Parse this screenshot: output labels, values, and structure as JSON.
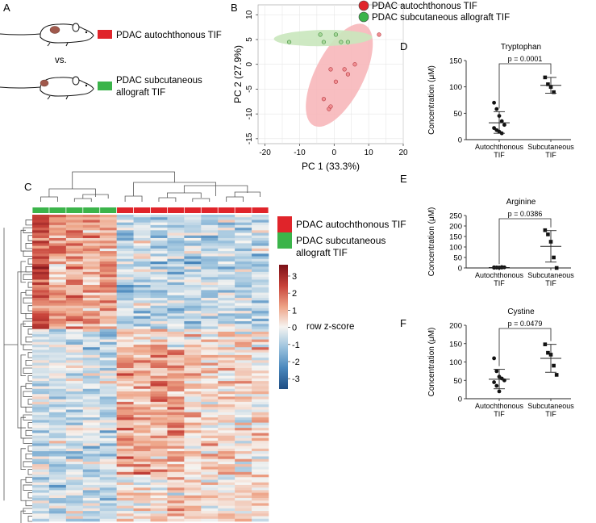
{
  "colors": {
    "autochthonous": "#e0242a",
    "subcutaneous": "#3bb44a",
    "pca_red_fill": "#f7b3b6",
    "pca_green_fill": "#c9e7bd",
    "heat_low": "#1f4e84",
    "heat_mid": "#f6f4f1",
    "heat_high": "#7b1017"
  },
  "panel_a": {
    "letter": "A",
    "group1_label": "PDAC autochthonous TIF",
    "vs_label": "vs.",
    "group2_label_line1": "PDAC subcutaneous",
    "group2_label_line2": "allograft TIF"
  },
  "panel_b": {
    "letter": "B",
    "legend": [
      "PDAC autochthonous TIF",
      "PDAC subcutaneous allograft TIF"
    ]
  },
  "panel_c": {
    "letter": "C",
    "legend": [
      "PDAC autochthonous TIF",
      "PDAC subcutaneous",
      "allograft TIF"
    ],
    "colorbar_label": "row z-score",
    "colorbar_ticks": [
      "3",
      "2",
      "1",
      "0",
      "-1",
      "-2",
      "-3"
    ]
  },
  "chart_data": [
    {
      "id": "pca",
      "type": "scatter",
      "panel": "B",
      "xlabel": "PC 1 (33.3%)",
      "ylabel": "PC 2 (27.9%)",
      "xlim": [
        -22,
        20
      ],
      "ylim": [
        -16,
        12
      ],
      "xticks": [
        -20,
        -10,
        0,
        10,
        20
      ],
      "yticks": [
        10,
        5,
        0,
        -5,
        -10,
        -15
      ],
      "grid": true,
      "series": [
        {
          "name": "PDAC autochthonous TIF",
          "x": [
            13,
            6,
            3,
            4,
            -1,
            0.5,
            -1.5,
            -1,
            -3
          ],
          "y": [
            6,
            0,
            -1,
            -2,
            -1,
            -3.5,
            -9,
            -8.5,
            -7
          ]
        },
        {
          "name": "PDAC subcutaneous allograft TIF",
          "x": [
            -13,
            -4,
            -3,
            0.5,
            2,
            4
          ],
          "y": [
            4.5,
            6,
            4.5,
            6,
            4.5,
            4.5
          ]
        }
      ]
    },
    {
      "id": "tryptophan",
      "type": "scatter",
      "panel": "D",
      "letter": "D",
      "title": "Tryptophan",
      "ylabel": "Concentration (μM)",
      "ylim": [
        0,
        150
      ],
      "yticks": [
        0,
        50,
        100,
        150
      ],
      "categories": [
        "Autochthonous",
        "Subcutaneous"
      ],
      "category_sub": [
        "TIF",
        "TIF"
      ],
      "pvalue": "p = 0.0001",
      "groups": [
        {
          "name": "Autochthonous TIF",
          "values": [
            70,
            58,
            45,
            35,
            28,
            22,
            18,
            15,
            12
          ],
          "mean": 32,
          "sd_low": 12,
          "sd_high": 53
        },
        {
          "name": "Subcutaneous TIF",
          "values": [
            118,
            105,
            100,
            90
          ],
          "mean": 103,
          "sd_low": 88,
          "sd_high": 118
        }
      ]
    },
    {
      "id": "arginine",
      "type": "scatter",
      "panel": "E",
      "letter": "E",
      "title": "Arginine",
      "ylabel": "Concentration (μM)",
      "ylim": [
        0,
        250
      ],
      "yticks": [
        0,
        50,
        100,
        150,
        200,
        250
      ],
      "categories": [
        "Autochthonous",
        "Subcutaneous"
      ],
      "category_sub": [
        "TIF",
        "TIF"
      ],
      "pvalue": "p = 0.0386",
      "groups": [
        {
          "name": "Autochthonous TIF",
          "values": [
            3,
            2,
            1,
            2,
            3,
            1,
            2,
            2,
            4
          ],
          "mean": 2,
          "sd_low": 1,
          "sd_high": 3
        },
        {
          "name": "Subcutaneous TIF",
          "values": [
            180,
            160,
            125,
            50,
            0
          ],
          "mean": 103,
          "sd_low": 28,
          "sd_high": 178
        }
      ]
    },
    {
      "id": "cystine",
      "type": "scatter",
      "panel": "F",
      "letter": "F",
      "title": "Cystine",
      "ylabel": "Concentration (μM)",
      "ylim": [
        0,
        200
      ],
      "yticks": [
        0,
        50,
        100,
        150,
        200
      ],
      "categories": [
        "Autochthonous",
        "Subcutaneous"
      ],
      "category_sub": [
        "TIF",
        "TIF"
      ],
      "pvalue": "p = 0.0479",
      "groups": [
        {
          "name": "Autochthonous TIF",
          "values": [
            110,
            75,
            60,
            55,
            50,
            45,
            35,
            20
          ],
          "mean": 53,
          "sd_low": 27,
          "sd_high": 80
        },
        {
          "name": "Subcutaneous TIF",
          "values": [
            148,
            125,
            120,
            90,
            65
          ],
          "mean": 110,
          "sd_low": 72,
          "sd_high": 148
        }
      ]
    },
    {
      "id": "heatmap",
      "type": "heatmap",
      "panel": "C",
      "column_groups": [
        "subcutaneous",
        "subcutaneous",
        "subcutaneous",
        "subcutaneous",
        "subcutaneous",
        "autochthonous",
        "autochthonous",
        "autochthonous",
        "autochthonous",
        "autochthonous",
        "autochthonous",
        "autochthonous",
        "autochthonous",
        "autochthonous"
      ],
      "n_rows": 118,
      "zlim": [
        -3.5,
        3.5
      ]
    }
  ]
}
